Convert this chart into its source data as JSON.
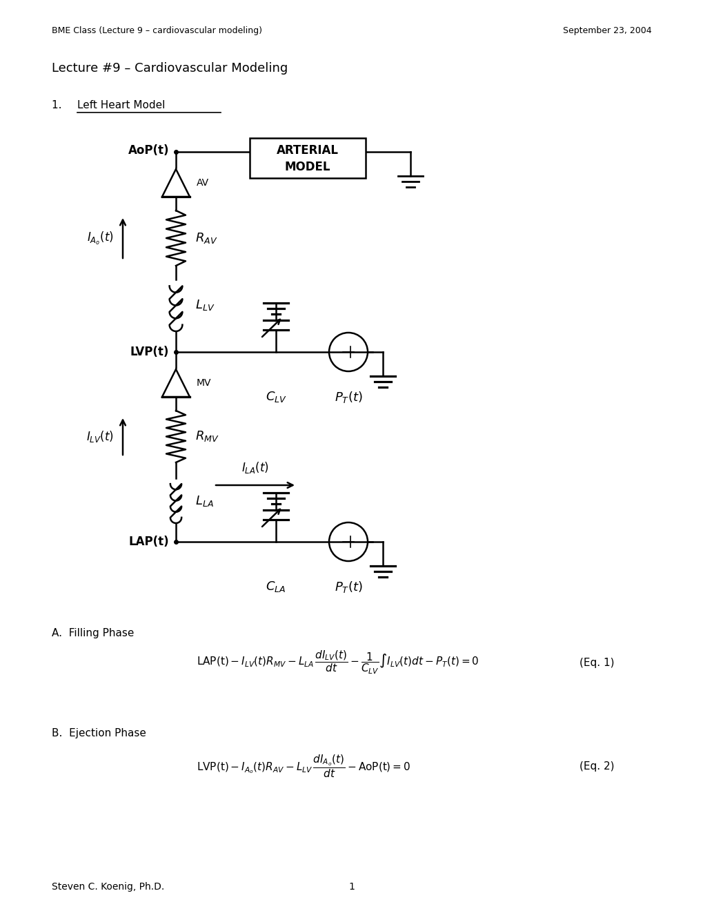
{
  "header_left": "BME Class (Lecture 9 – cardiovascular modeling)",
  "header_right": "September 23, 2004",
  "title": "Lecture #9 – Cardiovascular Modeling",
  "section1": "1.",
  "section1_underline": "Left Heart Model",
  "section_a": "A.  Filling Phase",
  "section_b": "B.  Ejection Phase",
  "footer_left": "Steven C. Koenig, Ph.D.",
  "footer_center": "1",
  "bg_color": "#ffffff",
  "text_color": "#000000"
}
